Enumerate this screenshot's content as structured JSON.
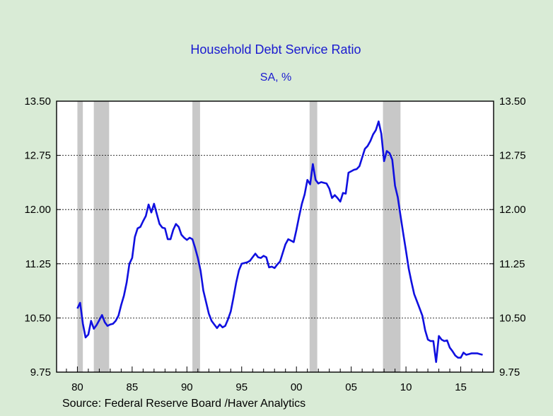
{
  "chart_data": {
    "type": "line",
    "title": "Household Debt Service Ratio",
    "subtitle": "SA, %",
    "source": "Source:  Federal Reserve Board /Haver Analytics",
    "xlabel": "",
    "ylabel": "",
    "xlim": [
      1978.1,
      2018.0
    ],
    "ylim": [
      9.75,
      13.5
    ],
    "y_ticks": [
      "9.75",
      "10.50",
      "11.25",
      "12.00",
      "12.75",
      "13.50"
    ],
    "x_ticks": [
      "80",
      "85",
      "90",
      "95",
      "00",
      "05",
      "10",
      "15"
    ],
    "recessions": [
      [
        1980.0,
        1980.5
      ],
      [
        1981.5,
        1982.9
      ],
      [
        1990.5,
        1991.2
      ],
      [
        2001.2,
        2001.9
      ],
      [
        2007.9,
        2009.5
      ]
    ],
    "colors": {
      "line": "#1010e0",
      "recession": "#c8c8c8",
      "title": "#1a1ad0",
      "background": "#d9ebd6"
    },
    "series": [
      {
        "values": [
          [
            1980.0,
            10.63
          ],
          [
            1980.25,
            10.71
          ],
          [
            1980.5,
            10.42
          ],
          [
            1980.75,
            10.23
          ],
          [
            1981.0,
            10.27
          ],
          [
            1981.25,
            10.46
          ],
          [
            1981.5,
            10.35
          ],
          [
            1981.75,
            10.4
          ],
          [
            1982.0,
            10.47
          ],
          [
            1982.25,
            10.54
          ],
          [
            1982.5,
            10.44
          ],
          [
            1982.75,
            10.39
          ],
          [
            1983.0,
            10.41
          ],
          [
            1983.25,
            10.42
          ],
          [
            1983.5,
            10.46
          ],
          [
            1983.75,
            10.53
          ],
          [
            1984.0,
            10.68
          ],
          [
            1984.25,
            10.81
          ],
          [
            1984.5,
            10.99
          ],
          [
            1984.75,
            11.25
          ],
          [
            1985.0,
            11.33
          ],
          [
            1985.25,
            11.62
          ],
          [
            1985.5,
            11.74
          ],
          [
            1985.75,
            11.76
          ],
          [
            1986.0,
            11.84
          ],
          [
            1986.25,
            11.91
          ],
          [
            1986.5,
            12.07
          ],
          [
            1986.75,
            11.96
          ],
          [
            1987.0,
            12.08
          ],
          [
            1987.25,
            11.94
          ],
          [
            1987.5,
            11.8
          ],
          [
            1987.75,
            11.75
          ],
          [
            1988.0,
            11.74
          ],
          [
            1988.25,
            11.59
          ],
          [
            1988.5,
            11.59
          ],
          [
            1988.75,
            11.72
          ],
          [
            1989.0,
            11.8
          ],
          [
            1989.25,
            11.76
          ],
          [
            1989.5,
            11.65
          ],
          [
            1989.75,
            11.61
          ],
          [
            1990.0,
            11.58
          ],
          [
            1990.25,
            11.61
          ],
          [
            1990.5,
            11.59
          ],
          [
            1990.75,
            11.47
          ],
          [
            1991.0,
            11.33
          ],
          [
            1991.25,
            11.15
          ],
          [
            1991.5,
            10.88
          ],
          [
            1991.75,
            10.72
          ],
          [
            1992.0,
            10.56
          ],
          [
            1992.25,
            10.46
          ],
          [
            1992.5,
            10.41
          ],
          [
            1992.75,
            10.36
          ],
          [
            1993.0,
            10.41
          ],
          [
            1993.25,
            10.37
          ],
          [
            1993.5,
            10.39
          ],
          [
            1993.75,
            10.48
          ],
          [
            1994.0,
            10.59
          ],
          [
            1994.25,
            10.78
          ],
          [
            1994.5,
            10.99
          ],
          [
            1994.75,
            11.16
          ],
          [
            1995.0,
            11.25
          ],
          [
            1995.25,
            11.26
          ],
          [
            1995.5,
            11.27
          ],
          [
            1995.75,
            11.29
          ],
          [
            1996.0,
            11.34
          ],
          [
            1996.25,
            11.39
          ],
          [
            1996.5,
            11.34
          ],
          [
            1996.75,
            11.33
          ],
          [
            1997.0,
            11.36
          ],
          [
            1997.25,
            11.34
          ],
          [
            1997.5,
            11.2
          ],
          [
            1997.75,
            11.21
          ],
          [
            1998.0,
            11.19
          ],
          [
            1998.25,
            11.24
          ],
          [
            1998.5,
            11.28
          ],
          [
            1998.75,
            11.4
          ],
          [
            1999.0,
            11.52
          ],
          [
            1999.25,
            11.59
          ],
          [
            1999.5,
            11.57
          ],
          [
            1999.75,
            11.55
          ],
          [
            2000.0,
            11.72
          ],
          [
            2000.25,
            11.91
          ],
          [
            2000.5,
            12.08
          ],
          [
            2000.75,
            12.21
          ],
          [
            2001.0,
            12.41
          ],
          [
            2001.25,
            12.35
          ],
          [
            2001.5,
            12.63
          ],
          [
            2001.75,
            12.41
          ],
          [
            2002.0,
            12.36
          ],
          [
            2002.25,
            12.38
          ],
          [
            2002.5,
            12.37
          ],
          [
            2002.75,
            12.36
          ],
          [
            2003.0,
            12.29
          ],
          [
            2003.25,
            12.16
          ],
          [
            2003.5,
            12.2
          ],
          [
            2003.75,
            12.16
          ],
          [
            2004.0,
            12.11
          ],
          [
            2004.25,
            12.23
          ],
          [
            2004.5,
            12.22
          ],
          [
            2004.75,
            12.51
          ],
          [
            2005.0,
            12.53
          ],
          [
            2005.25,
            12.55
          ],
          [
            2005.5,
            12.56
          ],
          [
            2005.75,
            12.6
          ],
          [
            2006.0,
            12.72
          ],
          [
            2006.25,
            12.84
          ],
          [
            2006.5,
            12.88
          ],
          [
            2006.75,
            12.95
          ],
          [
            2007.0,
            13.04
          ],
          [
            2007.25,
            13.1
          ],
          [
            2007.5,
            13.22
          ],
          [
            2007.75,
            13.05
          ],
          [
            2008.0,
            12.67
          ],
          [
            2008.25,
            12.81
          ],
          [
            2008.5,
            12.78
          ],
          [
            2008.75,
            12.69
          ],
          [
            2009.0,
            12.33
          ],
          [
            2009.25,
            12.17
          ],
          [
            2009.5,
            11.92
          ],
          [
            2009.75,
            11.67
          ],
          [
            2010.0,
            11.43
          ],
          [
            2010.25,
            11.18
          ],
          [
            2010.5,
            11.0
          ],
          [
            2010.75,
            10.83
          ],
          [
            2011.0,
            10.73
          ],
          [
            2011.25,
            10.63
          ],
          [
            2011.5,
            10.53
          ],
          [
            2011.75,
            10.33
          ],
          [
            2012.0,
            10.2
          ],
          [
            2012.25,
            10.18
          ],
          [
            2012.5,
            10.18
          ],
          [
            2012.75,
            9.89
          ],
          [
            2013.0,
            10.25
          ],
          [
            2013.25,
            10.2
          ],
          [
            2013.5,
            10.18
          ],
          [
            2013.75,
            10.19
          ],
          [
            2014.0,
            10.09
          ],
          [
            2014.25,
            10.04
          ],
          [
            2014.5,
            9.98
          ],
          [
            2014.75,
            9.95
          ],
          [
            2015.0,
            9.95
          ],
          [
            2015.25,
            10.02
          ],
          [
            2015.5,
            9.99
          ],
          [
            2015.75,
            10.0
          ],
          [
            2016.0,
            10.01
          ],
          [
            2016.25,
            10.01
          ],
          [
            2016.5,
            10.01
          ],
          [
            2016.75,
            10.0
          ],
          [
            2017.0,
            9.99
          ]
        ]
      }
    ]
  }
}
